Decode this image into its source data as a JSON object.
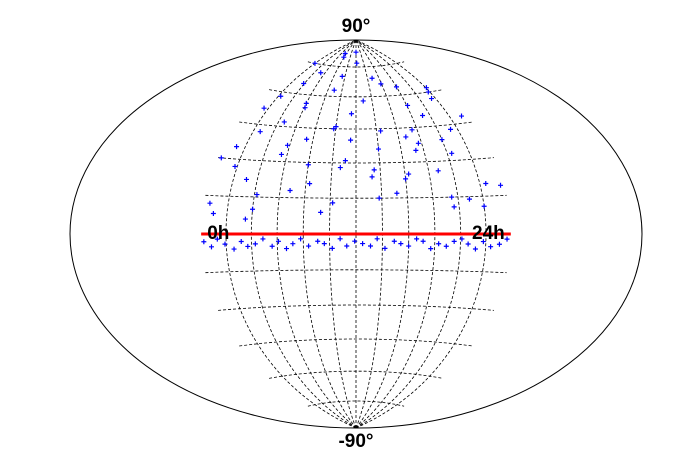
{
  "chart_data": {
    "type": "scatter",
    "projection": "hammer-aitoff",
    "xlim": [
      0,
      24
    ],
    "ylim": [
      -90,
      90
    ],
    "xticks": [
      {
        "value": 0,
        "label": "0h"
      },
      {
        "value": 24,
        "label": "24h"
      }
    ],
    "yticks": [
      {
        "value": -90,
        "label": "-90°"
      },
      {
        "value": 90,
        "label": "90°"
      }
    ],
    "xgrid": [
      2,
      4,
      6,
      8,
      10,
      12,
      14,
      16,
      18,
      20,
      22
    ],
    "ygrid": [
      -75,
      -60,
      -45,
      -30,
      -15,
      0,
      15,
      30,
      45,
      60,
      75
    ],
    "reference_line": {
      "dec": 0,
      "color": "#ff0000"
    },
    "series": [
      {
        "color": "#0000ff",
        "x": [
          0.5,
          1.2,
          2.3,
          3.1,
          4.6,
          5.2,
          6.8,
          7.4,
          8.9,
          9.3,
          10.7,
          11.5,
          12.2,
          13.8,
          14.4,
          15.9,
          16.3,
          17.7,
          18.1,
          19.6,
          20.4,
          21.8,
          22.5,
          23.3,
          0.9,
          1.8,
          2.7,
          3.9,
          4.2,
          5.8,
          6.1,
          7.9,
          8.3,
          9.8,
          10.2,
          11.1,
          12.9,
          13.3,
          14.8,
          15.2,
          16.7,
          17.3,
          18.8,
          19.2,
          20.9,
          21.3,
          22.1,
          23.7,
          0.3,
          2.0,
          4.0,
          6.0,
          8.0,
          10.0,
          12.0,
          14.0,
          16.0,
          18.0,
          20.0,
          22.0,
          1.5,
          5.5,
          9.5,
          13.5,
          17.5,
          21.5,
          3.5,
          7.5,
          11.5,
          19.5
        ],
        "values": [
          12,
          35,
          58,
          22,
          47,
          71,
          18,
          40,
          63,
          9,
          28,
          52,
          77,
          15,
          44,
          66,
          25,
          38,
          55,
          11,
          33,
          60,
          20,
          48,
          8,
          27,
          42,
          65,
          16,
          37,
          54,
          80,
          21,
          45,
          13,
          31,
          58,
          24,
          69,
          17,
          41,
          35,
          26,
          50,
          14,
          43,
          62,
          19,
          30,
          75,
          10,
          56,
          29,
          46,
          83,
          36,
          23,
          64,
          39,
          11,
          52,
          33,
          70,
          27,
          44,
          57,
          6,
          82,
          40,
          15
        ]
      },
      {
        "color": "#0000ff",
        "x": [
          0.2,
          0.8,
          1.3,
          1.9,
          2.6,
          3.2,
          3.7,
          4.3,
          4.9,
          5.6,
          6.1,
          6.7,
          7.2,
          7.8,
          8.4,
          9.1,
          9.6,
          10.2,
          10.8,
          11.3,
          11.9,
          12.5,
          13.1,
          13.6,
          14.2,
          14.9,
          15.4,
          16.0,
          16.6,
          17.1,
          17.7,
          18.3,
          18.9,
          19.5,
          20.1,
          20.6,
          21.2,
          21.8,
          22.4,
          23.1,
          23.7
        ],
        "values": [
          -3,
          -5,
          -2,
          -4,
          -6,
          -3,
          -5,
          -4,
          -2,
          -5,
          -3,
          -6,
          -4,
          -2,
          -5,
          -3,
          -4,
          -6,
          -2,
          -5,
          -3,
          -4,
          -5,
          -2,
          -6,
          -3,
          -4,
          -5,
          -2,
          -3,
          -6,
          -4,
          -5,
          -3,
          -2,
          -4,
          -6,
          -3,
          -5,
          -4,
          -2
        ]
      }
    ]
  }
}
